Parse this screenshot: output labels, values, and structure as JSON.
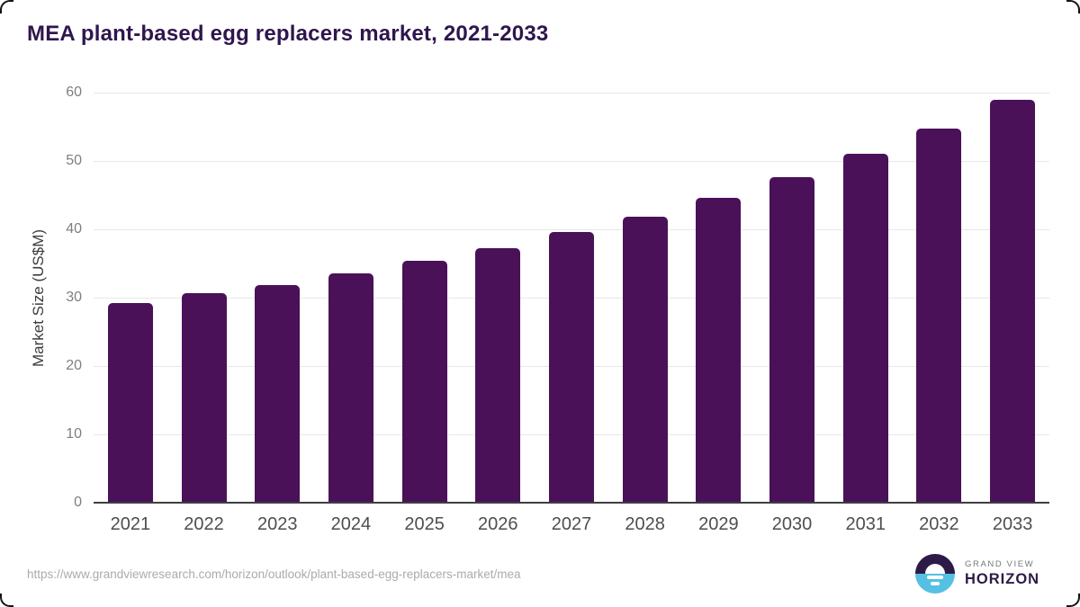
{
  "page": {
    "title": "MEA plant-based egg replacers market, 2021-2033"
  },
  "chart_data": {
    "type": "bar",
    "title": "MEA plant-based egg replacers market, 2021-2033",
    "categories": [
      "2021",
      "2022",
      "2023",
      "2024",
      "2025",
      "2026",
      "2027",
      "2028",
      "2029",
      "2030",
      "2031",
      "2032",
      "2033"
    ],
    "values": [
      29.2,
      30.6,
      31.9,
      33.5,
      35.4,
      37.3,
      39.6,
      41.9,
      44.6,
      47.6,
      51.0,
      54.7,
      58.9
    ],
    "xlabel": "",
    "ylabel": "Market Size (US$M)",
    "ylim": [
      0,
      60
    ],
    "yticks": [
      0,
      10,
      20,
      30,
      40,
      50,
      60
    ],
    "grid": true,
    "legend": false,
    "bar_color": "#4a1159"
  },
  "footer": {
    "source_url": "https://www.grandviewresearch.com/horizon/outlook/plant-based-egg-replacers-market/mea",
    "logo": {
      "line1": "GRAND VIEW",
      "line2": "HORIZON"
    }
  },
  "colors": {
    "title_text": "#2f164e",
    "bar": "#4a1159",
    "gridline": "#e8e8e8",
    "axis_line": "#3e3f41",
    "y_tick_text": "#7d7f82",
    "x_tick_text": "#4d4e50",
    "url_text": "#a9abad",
    "logo_purple": "#2e1a47",
    "logo_blue": "#55c0e4",
    "logo_gray_text": "#77787b"
  }
}
